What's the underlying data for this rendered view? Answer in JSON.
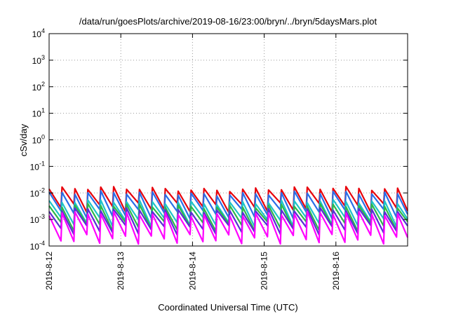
{
  "chart_data": {
    "type": "line",
    "title": "/data/run/goesPlots/archive/2019-08-16/23:00/bryn/../bryn/5daysMars.plot",
    "xlabel": "Coordinated Universal Time (UTC)",
    "ylabel": "cSv/day",
    "yscale": "log",
    "ylim": [
      0.0001,
      10000
    ],
    "xlim": [
      "2019-8-12",
      "2019-8-17"
    ],
    "grid": true,
    "x_ticks": [
      "2019-8-12",
      "2019-8-13",
      "2019-8-14",
      "2019-8-15",
      "2019-8-16"
    ],
    "y_ticks": [
      {
        "base": "10",
        "exp": "4"
      },
      {
        "base": "10",
        "exp": "3"
      },
      {
        "base": "10",
        "exp": "2"
      },
      {
        "base": "10",
        "exp": "1"
      },
      {
        "base": "10",
        "exp": "0"
      },
      {
        "base": "10",
        "exp": "-1"
      },
      {
        "base": "10",
        "exp": "-2"
      },
      {
        "base": "10",
        "exp": "-3"
      },
      {
        "base": "10",
        "exp": "-4"
      }
    ],
    "sawtooth_period_days": 0.18,
    "series": [
      {
        "color": "#e8000b",
        "peak": 0.014,
        "trough": 0.0028
      },
      {
        "color": "#2a6ee8",
        "peak": 0.0095,
        "trough": 0.0016
      },
      {
        "color": "#1fc3c8",
        "peak": 0.0045,
        "trough": 0.0008
      },
      {
        "color": "#2db84a",
        "peak": 0.0032,
        "trough": 0.00055
      },
      {
        "color": "#5b2bd6",
        "peak": 0.0022,
        "trough": 0.0004
      },
      {
        "color": "#ff00ff",
        "peak": 0.0016,
        "trough": 0.00018
      }
    ]
  }
}
